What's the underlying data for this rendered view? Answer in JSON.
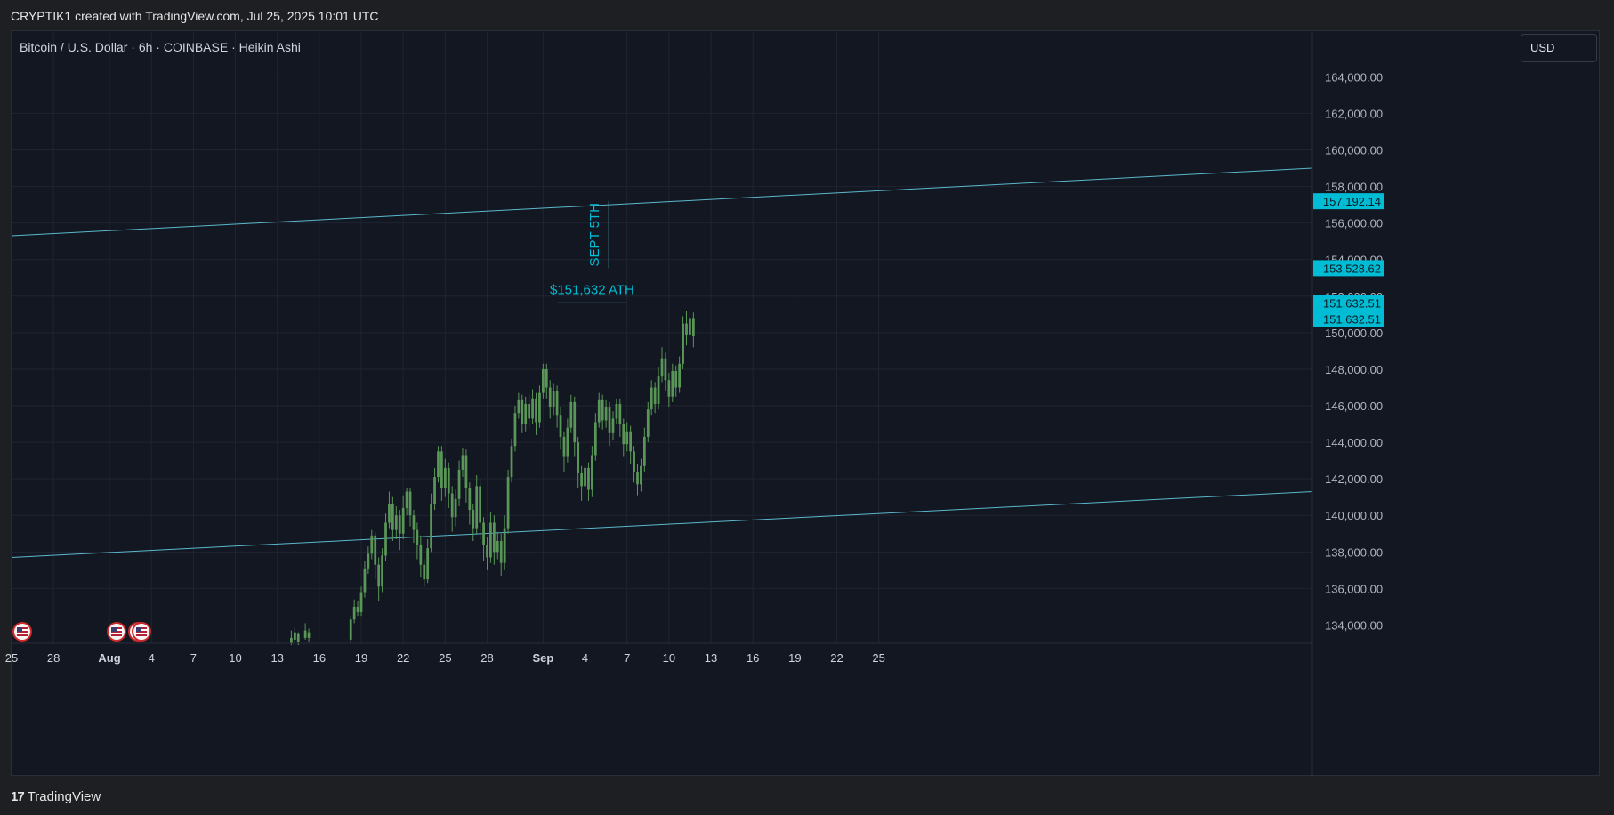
{
  "header": {
    "caption": "CRYPTIK1 created with TradingView.com, Jul 25, 2025 10:01 UTC"
  },
  "symbol_line": "Bitcoin / U.S. Dollar · 6h · COINBASE · Heikin Ashi",
  "currency_button": "USD",
  "footer": {
    "logo": "17",
    "brand": "TradingView"
  },
  "colors": {
    "bg": "#131722",
    "candle": "#5a9657",
    "trendline": "#5bb8cc",
    "label_bg": "#00bcd4",
    "annotation": "#00bcd4",
    "grid": "#1f2430"
  },
  "chart_data": {
    "type": "candlestick",
    "chart_style": "Heikin Ashi",
    "ylim": [
      133000,
      166500
    ],
    "xlim": [
      "2025-07-25",
      "2025-10-26"
    ],
    "y_ticks": [
      "134,000.00",
      "136,000.00",
      "138,000.00",
      "140,000.00",
      "142,000.00",
      "144,000.00",
      "146,000.00",
      "148,000.00",
      "150,000.00",
      "152,000.00",
      "154,000.00",
      "156,000.00",
      "158,000.00",
      "160,000.00",
      "162,000.00",
      "164,000.00"
    ],
    "x_ticks": [
      {
        "label": "25",
        "date": "2025-07-25",
        "bold": false
      },
      {
        "label": "28",
        "date": "2025-07-28",
        "bold": false
      },
      {
        "label": "Aug",
        "date": "2025-08-01",
        "bold": true
      },
      {
        "label": "4",
        "date": "2025-08-04",
        "bold": false
      },
      {
        "label": "7",
        "date": "2025-08-07",
        "bold": false
      },
      {
        "label": "10",
        "date": "2025-08-10",
        "bold": false
      },
      {
        "label": "13",
        "date": "2025-08-13",
        "bold": false
      },
      {
        "label": "16",
        "date": "2025-08-16",
        "bold": false
      },
      {
        "label": "19",
        "date": "2025-08-19",
        "bold": false
      },
      {
        "label": "22",
        "date": "2025-08-22",
        "bold": false
      },
      {
        "label": "25",
        "date": "2025-08-25",
        "bold": false
      },
      {
        "label": "28",
        "date": "2025-08-28",
        "bold": false
      },
      {
        "label": "Sep",
        "date": "2025-09-01",
        "bold": true
      },
      {
        "label": "4",
        "date": "2025-09-04",
        "bold": false
      },
      {
        "label": "7",
        "date": "2025-09-07",
        "bold": false
      },
      {
        "label": "10",
        "date": "2025-09-10",
        "bold": false
      },
      {
        "label": "13",
        "date": "2025-09-13",
        "bold": false
      },
      {
        "label": "16",
        "date": "2025-09-16",
        "bold": false
      },
      {
        "label": "19",
        "date": "2025-09-19",
        "bold": false
      },
      {
        "label": "22",
        "date": "2025-09-22",
        "bold": false
      },
      {
        "label": "25",
        "date": "2025-09-25",
        "bold": false
      }
    ],
    "price_labels": [
      {
        "text": "157,192.14",
        "value": 157192.14
      },
      {
        "text": "153,528.62",
        "value": 153528.62
      },
      {
        "text": "151,632.51",
        "value": 151632.51
      },
      {
        "text": "151,632.51",
        "value": 151632.51
      }
    ],
    "trendlines": [
      {
        "start": [
          "2025-07-25",
          155300
        ],
        "end": [
          "2025-10-26",
          159000
        ]
      },
      {
        "start": [
          "2025-07-25",
          137700
        ],
        "end": [
          "2025-10-26",
          141300
        ]
      }
    ],
    "annotations": [
      {
        "text": "$151,632 ATH",
        "date_start": "2025-09-02",
        "date_end": "2025-09-07",
        "value": 151632.51
      },
      {
        "text": "SEPT 5TH",
        "date": "2025-09-05",
        "value_low": 153528.62,
        "value_high": 157192.14
      }
    ],
    "candles": [
      [
        "2025-08-14 00:00",
        133000,
        133300,
        132900,
        133700
      ],
      [
        "2025-08-14 06:00",
        133200,
        133600,
        133000,
        133900
      ],
      [
        "2025-08-14 12:00",
        133500,
        133100,
        132900,
        133600
      ],
      [
        "2025-08-15 00:00",
        133300,
        133700,
        133200,
        134100
      ],
      [
        "2025-08-15 06:00",
        133600,
        133300,
        133100,
        133800
      ],
      [
        "2025-08-18 06:00",
        133200,
        134300,
        133000,
        134500
      ],
      [
        "2025-08-18 12:00",
        134300,
        135000,
        134100,
        135400
      ],
      [
        "2025-08-18 18:00",
        135000,
        134700,
        134500,
        135300
      ],
      [
        "2025-08-19 00:00",
        134700,
        135800,
        134500,
        136100
      ],
      [
        "2025-08-19 06:00",
        135800,
        137100,
        135500,
        137500
      ],
      [
        "2025-08-19 12:00",
        137100,
        137900,
        136800,
        138300
      ],
      [
        "2025-08-19 18:00",
        137900,
        138900,
        137600,
        139200
      ],
      [
        "2025-08-20 00:00",
        138900,
        137300,
        136500,
        139100
      ],
      [
        "2025-08-20 06:00",
        137300,
        136100,
        135300,
        137700
      ],
      [
        "2025-08-20 12:00",
        136100,
        137800,
        135800,
        138200
      ],
      [
        "2025-08-20 18:00",
        137800,
        139600,
        137500,
        140100
      ],
      [
        "2025-08-21 00:00",
        139600,
        140600,
        139300,
        141300
      ],
      [
        "2025-08-21 06:00",
        140600,
        139200,
        138600,
        141000
      ],
      [
        "2025-08-21 12:00",
        139200,
        140000,
        138700,
        140500
      ],
      [
        "2025-08-21 18:00",
        140000,
        139000,
        138100,
        140300
      ],
      [
        "2025-08-22 00:00",
        139000,
        140400,
        138700,
        141100
      ],
      [
        "2025-08-22 06:00",
        140400,
        141300,
        140000,
        141500
      ],
      [
        "2025-08-22 12:00",
        141300,
        140000,
        139400,
        141500
      ],
      [
        "2025-08-22 18:00",
        140000,
        139200,
        138500,
        140300
      ],
      [
        "2025-08-23 00:00",
        139200,
        138400,
        137600,
        139600
      ],
      [
        "2025-08-23 06:00",
        138400,
        137300,
        136600,
        138900
      ],
      [
        "2025-08-23 12:00",
        137300,
        136500,
        136100,
        137600
      ],
      [
        "2025-08-23 18:00",
        136500,
        138200,
        136300,
        138700
      ],
      [
        "2025-08-24 00:00",
        138200,
        140600,
        138000,
        141200
      ],
      [
        "2025-08-24 06:00",
        140600,
        142100,
        140300,
        142600
      ],
      [
        "2025-08-24 12:00",
        142100,
        143500,
        141800,
        143800
      ],
      [
        "2025-08-24 18:00",
        143500,
        141500,
        140800,
        143800
      ],
      [
        "2025-08-25 00:00",
        141500,
        142600,
        141000,
        143100
      ],
      [
        "2025-08-25 06:00",
        142600,
        141200,
        140400,
        142900
      ],
      [
        "2025-08-25 12:00",
        141200,
        139900,
        139100,
        141600
      ],
      [
        "2025-08-25 18:00",
        139900,
        140900,
        139400,
        141400
      ],
      [
        "2025-08-26 00:00",
        140900,
        142500,
        140500,
        143000
      ],
      [
        "2025-08-26 06:00",
        142500,
        143300,
        142100,
        143700
      ],
      [
        "2025-08-26 12:00",
        143300,
        141500,
        140700,
        143600
      ],
      [
        "2025-08-26 18:00",
        141500,
        140300,
        139500,
        141800
      ],
      [
        "2025-08-27 00:00",
        140300,
        139300,
        138600,
        140600
      ],
      [
        "2025-08-27 06:00",
        139300,
        141600,
        139000,
        142200
      ],
      [
        "2025-08-27 12:00",
        141600,
        139600,
        138700,
        142000
      ],
      [
        "2025-08-27 18:00",
        139600,
        138400,
        137500,
        139900
      ],
      [
        "2025-08-28 00:00",
        138400,
        137700,
        137000,
        138800
      ],
      [
        "2025-08-28 06:00",
        137700,
        139600,
        137400,
        140200
      ],
      [
        "2025-08-28 12:00",
        139600,
        138000,
        137300,
        140000
      ],
      [
        "2025-08-28 18:00",
        138000,
        138600,
        137600,
        139100
      ],
      [
        "2025-08-29 00:00",
        138600,
        137400,
        136700,
        139000
      ],
      [
        "2025-08-29 06:00",
        137400,
        139300,
        137000,
        140000
      ],
      [
        "2025-08-29 12:00",
        139300,
        142100,
        139000,
        142500
      ],
      [
        "2025-08-29 18:00",
        142100,
        143800,
        141800,
        144200
      ],
      [
        "2025-08-30 00:00",
        143800,
        145600,
        143500,
        146000
      ],
      [
        "2025-08-30 06:00",
        145600,
        146300,
        145300,
        146700
      ],
      [
        "2025-08-30 12:00",
        146300,
        145000,
        144500,
        146600
      ],
      [
        "2025-08-30 18:00",
        145000,
        146100,
        144600,
        146500
      ],
      [
        "2025-08-31 00:00",
        146100,
        145300,
        144800,
        146600
      ],
      [
        "2025-08-31 06:00",
        145300,
        146400,
        145000,
        146900
      ],
      [
        "2025-08-31 12:00",
        146400,
        145100,
        144400,
        146700
      ],
      [
        "2025-08-31 18:00",
        145100,
        146700,
        144800,
        147100
      ],
      [
        "2025-09-01 00:00",
        146700,
        148000,
        146400,
        148300
      ],
      [
        "2025-09-01 06:00",
        148000,
        147000,
        146400,
        148300
      ],
      [
        "2025-09-01 12:00",
        147000,
        145900,
        145300,
        147400
      ],
      [
        "2025-09-01 18:00",
        145900,
        146800,
        145500,
        147200
      ],
      [
        "2025-09-02 00:00",
        146800,
        145500,
        144800,
        147100
      ],
      [
        "2025-09-02 06:00",
        145500,
        144300,
        143600,
        145900
      ],
      [
        "2025-09-02 12:00",
        144300,
        143200,
        142400,
        144600
      ],
      [
        "2025-09-02 18:00",
        143200,
        144800,
        142900,
        145300
      ],
      [
        "2025-09-03 00:00",
        144800,
        146200,
        144500,
        146600
      ],
      [
        "2025-09-03 06:00",
        146200,
        144000,
        143200,
        146500
      ],
      [
        "2025-09-03 12:00",
        144000,
        142300,
        141500,
        144300
      ],
      [
        "2025-09-03 18:00",
        142300,
        141600,
        140800,
        142700
      ],
      [
        "2025-09-04 00:00",
        141600,
        142600,
        141200,
        143100
      ],
      [
        "2025-09-04 06:00",
        142600,
        141400,
        140800,
        142900
      ],
      [
        "2025-09-04 12:00",
        141400,
        143300,
        141000,
        143800
      ],
      [
        "2025-09-04 18:00",
        143300,
        145100,
        143000,
        145600
      ],
      [
        "2025-09-05 00:00",
        145100,
        146300,
        144800,
        146700
      ],
      [
        "2025-09-05 06:00",
        146300,
        145200,
        144700,
        146600
      ],
      [
        "2025-09-05 12:00",
        145200,
        145900,
        144800,
        146300
      ],
      [
        "2025-09-05 18:00",
        145900,
        144500,
        143800,
        146200
      ],
      [
        "2025-09-06 00:00",
        144500,
        145300,
        144100,
        145700
      ],
      [
        "2025-09-06 06:00",
        145300,
        146100,
        145000,
        146400
      ],
      [
        "2025-09-06 12:00",
        146100,
        145000,
        144300,
        146400
      ],
      [
        "2025-09-06 18:00",
        145000,
        143900,
        143200,
        145300
      ],
      [
        "2025-09-07 00:00",
        143900,
        144600,
        143500,
        145100
      ],
      [
        "2025-09-07 06:00",
        144600,
        143500,
        142800,
        144900
      ],
      [
        "2025-09-07 12:00",
        143500,
        142400,
        141800,
        143800
      ],
      [
        "2025-09-07 18:00",
        142400,
        141700,
        141100,
        142800
      ],
      [
        "2025-09-08 00:00",
        141700,
        142700,
        141300,
        143100
      ],
      [
        "2025-09-08 06:00",
        142700,
        144300,
        142400,
        144800
      ],
      [
        "2025-09-08 12:00",
        144300,
        145800,
        144000,
        146200
      ],
      [
        "2025-09-08 18:00",
        145800,
        147000,
        145500,
        147400
      ],
      [
        "2025-09-09 00:00",
        147000,
        146100,
        145600,
        147300
      ],
      [
        "2025-09-09 06:00",
        146100,
        147600,
        145800,
        148100
      ],
      [
        "2025-09-09 12:00",
        147600,
        148600,
        147300,
        149200
      ],
      [
        "2025-09-09 18:00",
        148600,
        147400,
        146800,
        148900
      ],
      [
        "2025-09-10 00:00",
        147400,
        146500,
        145900,
        147800
      ],
      [
        "2025-09-10 06:00",
        146500,
        147900,
        146200,
        148300
      ],
      [
        "2025-09-10 12:00",
        147900,
        147000,
        146500,
        148200
      ],
      [
        "2025-09-10 18:00",
        147000,
        148300,
        146700,
        148700
      ],
      [
        "2025-09-11 00:00",
        148300,
        150500,
        148000,
        150900
      ],
      [
        "2025-09-11 06:00",
        150500,
        149900,
        149300,
        151200
      ],
      [
        "2025-09-11 12:00",
        149900,
        150800,
        149600,
        151300
      ],
      [
        "2025-09-11 18:00",
        150800,
        149800,
        149200,
        151100
      ]
    ]
  }
}
